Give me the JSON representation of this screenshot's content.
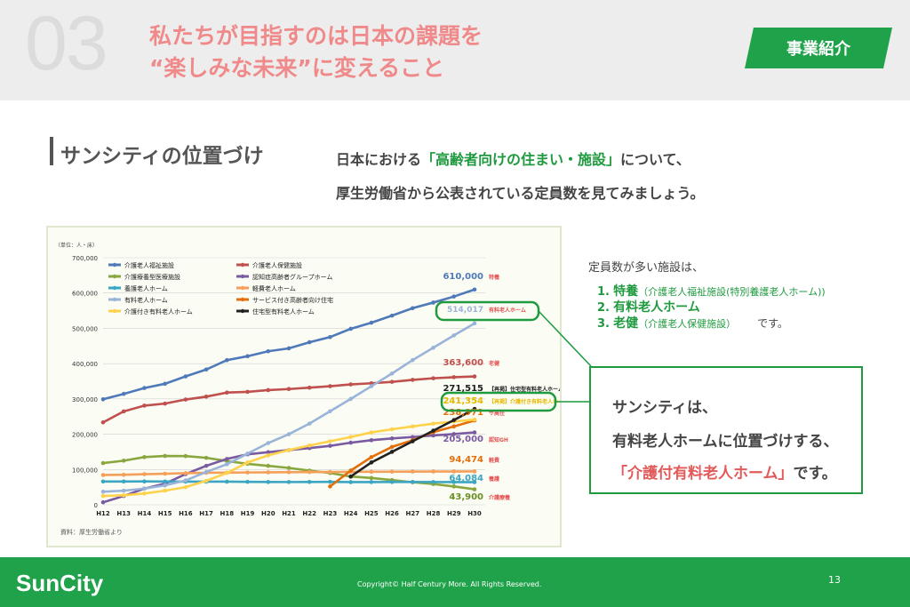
{
  "header": {
    "section_number": "03",
    "headline_line1": "私たちが目指すのは日本の課題を",
    "headline_line2": "“楽しみな未来”に変えること",
    "badge": "事業紹介"
  },
  "section": {
    "title": "サンシティの位置づけ",
    "intro_line1_pre": "日本における",
    "intro_line1_hl": "「高齢者向けの住まい・施設」",
    "intro_line1_post": "について、",
    "intro_line2": "厚生労働省から公表されている定員数を見てみましょう。"
  },
  "ranking": {
    "lead": "定員数が多い施設は、",
    "items": [
      {
        "num": "1.",
        "name": "特養",
        "sub": "（介護老人福祉施設(特別養護老人ホーム))"
      },
      {
        "num": "2.",
        "name": "有料老人ホーム",
        "sub": ""
      },
      {
        "num": "3.",
        "name": "老健",
        "sub": "（介護老人保健施設）"
      }
    ],
    "tail": "です。"
  },
  "callout": {
    "line1": "サンシティは、",
    "line2": "有料老人ホームに位置づけする、",
    "line3_hl": "「介護付有料老人ホーム」",
    "line3_post": "です。"
  },
  "footer": {
    "logo": "SunCity",
    "copyright": "Copyright© Half Century More. All Rights Reserved.",
    "page": "13"
  },
  "colors": {
    "green": "#1fa24a",
    "pink": "#f08a8a"
  },
  "chart_data": {
    "type": "line",
    "unit_label": "（単位：人・床）",
    "source": "資料：厚生労働省より",
    "categories": [
      "H12",
      "H13",
      "H14",
      "H15",
      "H16",
      "H17",
      "H18",
      "H19",
      "H20",
      "H21",
      "H22",
      "H23",
      "H24",
      "H25",
      "H26",
      "H27",
      "H28",
      "H29",
      "H30"
    ],
    "ylim": [
      0,
      700000
    ],
    "yticks": [
      "0",
      "100,000",
      "200,000",
      "300,000",
      "400,000",
      "500,000",
      "600,000",
      "700,000"
    ],
    "series": [
      {
        "name": "介護老人福祉施設",
        "color": "#4f79b8",
        "values": [
          298912,
          314192,
          330916,
          342900,
          363800,
          383326,
          409900,
          420910,
          435000,
          443200,
          460600,
          475200,
          498700,
          516000,
          536000,
          557000,
          573000,
          590000,
          610000
        ]
      },
      {
        "name": "介護老人保健施設",
        "color": "#c0504d",
        "values": [
          233536,
          264623,
          281000,
          286698,
          298300,
          306480,
          318000,
          320000,
          324900,
          328000,
          331800,
          336000,
          341100,
          344300,
          348300,
          354000,
          358500,
          361500,
          363600
        ]
      },
      {
        "name": "介護療養型医療施設",
        "color": "#8aa63e",
        "values": [
          118111,
          125000,
          135100,
          138400,
          137900,
          133100,
          124000,
          116000,
          110300,
          104500,
          96800,
          90000,
          80000,
          76000,
          70000,
          63900,
          59000,
          52000,
          43900
        ]
      },
      {
        "name": "認知症高齢者グループホーム",
        "color": "#7a5aa0",
        "values": [
          7000,
          25000,
          45800,
          60000,
          87000,
          110500,
          130000,
          143000,
          149000,
          155000,
          160600,
          167000,
          176000,
          183000,
          188000,
          192000,
          196500,
          200500,
          205000
        ]
      },
      {
        "name": "養護老人ホーム",
        "color": "#3aa6c2",
        "values": [
          66000,
          66000,
          66200,
          66000,
          65700,
          65500,
          65500,
          65000,
          64600,
          64500,
          64800,
          65000,
          64300,
          64400,
          64600,
          64700,
          64500,
          64300,
          64084
        ]
      },
      {
        "name": "軽費老人ホーム",
        "color": "#f5a05a",
        "values": [
          84500,
          85100,
          86800,
          88000,
          89500,
          90700,
          91000,
          91600,
          92000,
          92400,
          92700,
          92900,
          93500,
          93600,
          93800,
          94000,
          94200,
          94300,
          94474
        ]
      },
      {
        "name": "有料老人ホーム",
        "color": "#9ab3d8",
        "values": [
          37000,
          40000,
          46000,
          55000,
          69000,
          93000,
          115000,
          145000,
          175000,
          200000,
          230000,
          265000,
          300000,
          336000,
          372000,
          410000,
          445000,
          480000,
          514017
        ]
      },
      {
        "name": "サービス付き高齢者向け住宅",
        "color": "#e46f0a",
        "values": [
          null,
          null,
          null,
          null,
          null,
          null,
          null,
          null,
          null,
          null,
          null,
          52000,
          97000,
          135000,
          164000,
          183000,
          206000,
          222000,
          238971
        ]
      },
      {
        "name": "介護付き有料老人ホーム",
        "color": "#ffd24d",
        "values": [
          25000,
          27000,
          32000,
          40000,
          50000,
          68000,
          90000,
          120000,
          140000,
          155000,
          168000,
          180000,
          192000,
          205000,
          214000,
          222000,
          230000,
          236000,
          241354
        ]
      },
      {
        "name": "住宅型有料老人ホーム",
        "color": "#202020",
        "values": [
          null,
          null,
          null,
          null,
          null,
          null,
          null,
          null,
          null,
          null,
          null,
          null,
          80000,
          120000,
          150000,
          180000,
          210000,
          240000,
          271515
        ]
      }
    ],
    "end_labels": [
      {
        "value": "610,000",
        "label": "特養"
      },
      {
        "value": "514,017",
        "label": "有料老人ホーム"
      },
      {
        "value": "363,600",
        "label": "老健"
      },
      {
        "value": "271,515",
        "label": "【再掲】住宅型有料老人ホーム"
      },
      {
        "value": "241,354",
        "label": "【再掲】介護付き有料老人ホーム"
      },
      {
        "value": "238,971",
        "label": "サ高住"
      },
      {
        "value": "205,000",
        "label": "認知GH"
      },
      {
        "value": "94,474",
        "label": "軽費"
      },
      {
        "value": "64,084",
        "label": "養護"
      },
      {
        "value": "43,900",
        "label": "介護療養"
      }
    ]
  }
}
